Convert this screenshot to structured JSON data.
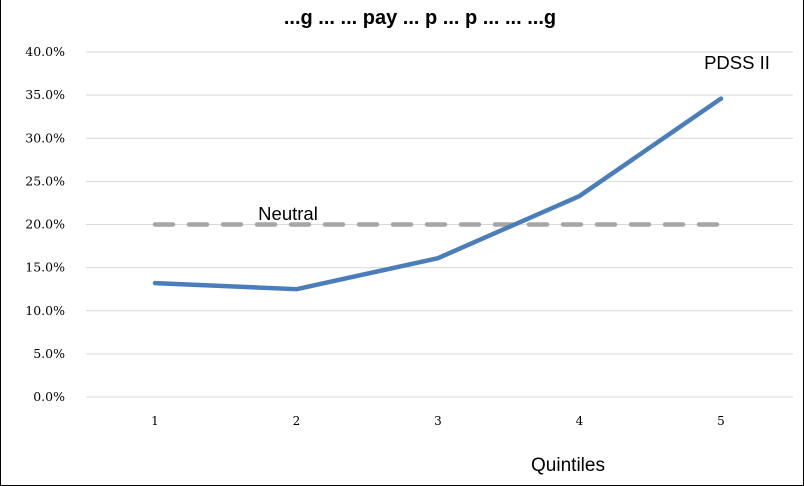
{
  "chart_data": {
    "type": "line",
    "title": "...g ... ... pay ... p ... p ... ... ...g",
    "xlabel": "Quintiles",
    "ylabel": "",
    "categories": [
      "1",
      "2",
      "3",
      "4",
      "5"
    ],
    "y_ticks": [
      "0.0%",
      "5.0%",
      "10.0%",
      "15.0%",
      "20.0%",
      "25.0%",
      "30.0%",
      "35.0%",
      "40.0%"
    ],
    "ylim": [
      0,
      40
    ],
    "grid": true,
    "series": [
      {
        "name": "PDSS II",
        "values": [
          13.2,
          12.5,
          16.1,
          23.3,
          34.6
        ],
        "color": "#4a7ebb",
        "style": "solid"
      },
      {
        "name": "Neutral",
        "values": [
          20,
          20,
          20,
          20,
          20
        ],
        "color": "#a6a6a6",
        "style": "dashed"
      }
    ]
  }
}
